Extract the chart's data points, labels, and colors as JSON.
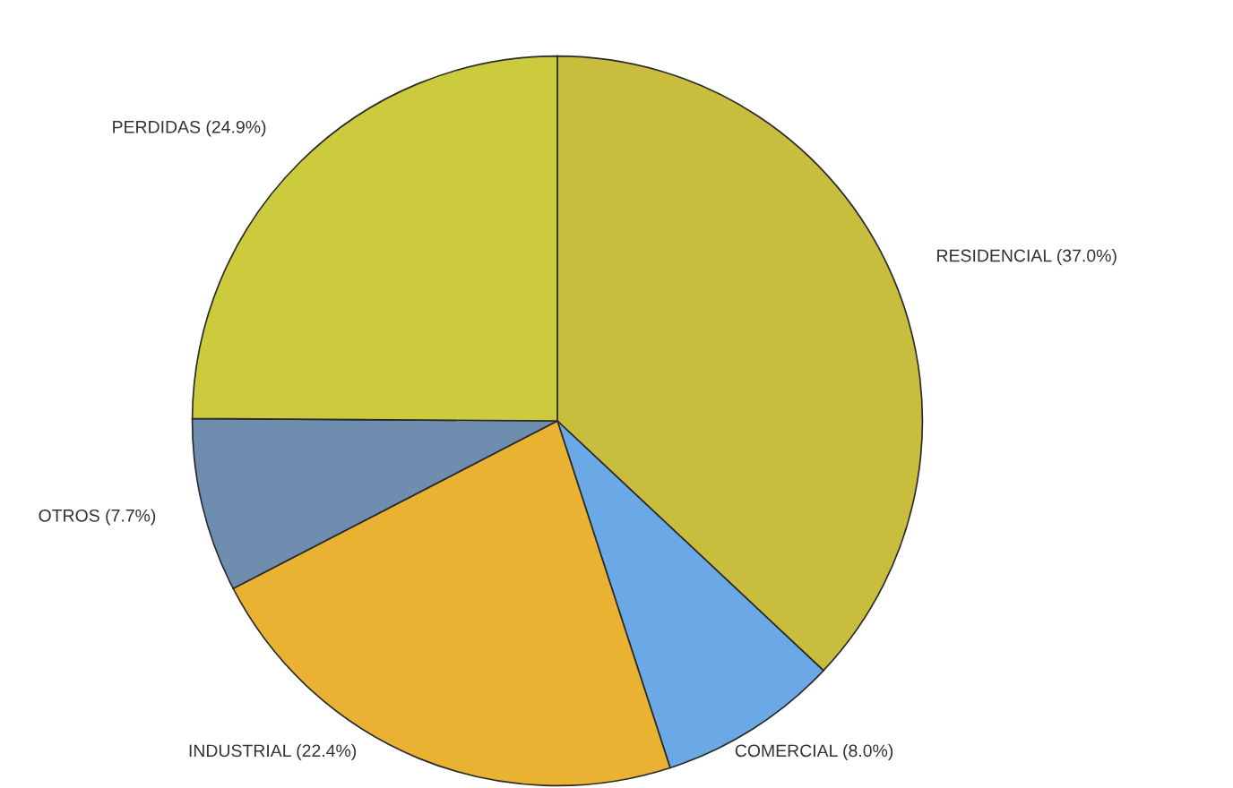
{
  "chart_data": {
    "type": "pie",
    "categories": [
      "RESIDENCIAL (37.0%)",
      "COMERCIAL (8.0%)",
      "INDUSTRIAL (22.4%)",
      "OTROS (7.7%)",
      "PERDIDAS (24.9%)"
    ],
    "values": [
      37.0,
      8.0,
      22.4,
      7.7,
      24.9
    ],
    "colors": [
      "#c9bd3e",
      "#6aa8e6",
      "#e9b232",
      "#6f8daf",
      "#cccb3e"
    ]
  }
}
